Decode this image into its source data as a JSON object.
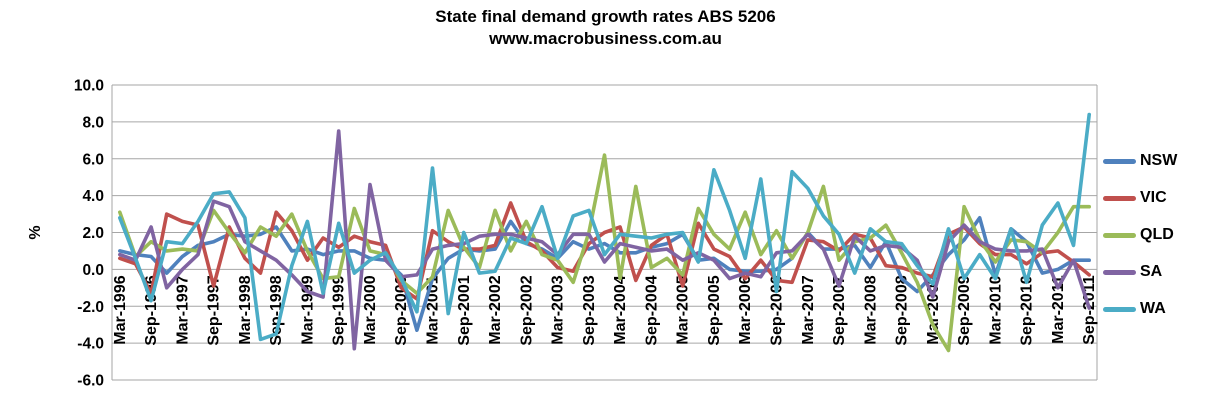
{
  "title": "State final demand  growth rates ABS 5206",
  "subtitle": "www.macrobusiness.com.au",
  "colors": {
    "background": "#ffffff",
    "grid": "#a6a6a6",
    "text": "#000000"
  },
  "chart_data": {
    "type": "line",
    "title": "State final demand  growth rates ABS 5206",
    "subtitle": "www.macrobusiness.com.au",
    "xlabel": "",
    "ylabel": "%",
    "ylim": [
      -6.0,
      10.0
    ],
    "ytick_step": 2.0,
    "ytick_labels": [
      "10.0",
      "8.0",
      "6.0",
      "4.0",
      "2.0",
      "0.0",
      "-2.0",
      "-4.0",
      "-6.0"
    ],
    "grid": true,
    "legend_position": "right",
    "x_label_every": 2,
    "categories": [
      "Mar-1996",
      "Jun-1996",
      "Sep-1996",
      "Dec-1996",
      "Mar-1997",
      "Jun-1997",
      "Sep-1997",
      "Dec-1997",
      "Mar-1998",
      "Jun-1998",
      "Sep-1998",
      "Dec-1998",
      "Mar-1999",
      "Jun-1999",
      "Sep-1999",
      "Dec-1999",
      "Mar-2000",
      "Jun-2000",
      "Sep-2000",
      "Dec-2000",
      "Mar-2001",
      "Jun-2001",
      "Sep-2001",
      "Dec-2001",
      "Mar-2002",
      "Jun-2002",
      "Sep-2002",
      "Dec-2002",
      "Mar-2003",
      "Jun-2003",
      "Sep-2003",
      "Dec-2003",
      "Mar-2004",
      "Jun-2004",
      "Sep-2004",
      "Dec-2004",
      "Mar-2005",
      "Jun-2005",
      "Sep-2005",
      "Dec-2005",
      "Mar-2006",
      "Jun-2006",
      "Sep-2006",
      "Dec-2006",
      "Mar-2007",
      "Jun-2007",
      "Sep-2007",
      "Dec-2007",
      "Mar-2008",
      "Jun-2008",
      "Sep-2008",
      "Dec-2008",
      "Mar-2009",
      "Jun-2009",
      "Sep-2009",
      "Dec-2009",
      "Mar-2010",
      "Jun-2010",
      "Sep-2010",
      "Dec-2010",
      "Mar-2011",
      "Jun-2011",
      "Sep-2011"
    ],
    "series": [
      {
        "name": "NSW",
        "color": "#4F81BD",
        "values": [
          1.0,
          0.8,
          0.7,
          -0.2,
          0.7,
          1.3,
          1.5,
          1.9,
          1.8,
          1.9,
          2.3,
          1.0,
          1.1,
          0.8,
          1.0,
          1.0,
          0.6,
          0.5,
          -0.3,
          -3.3,
          -0.5,
          0.6,
          1.1,
          1.0,
          1.1,
          2.6,
          1.4,
          1.1,
          0.6,
          1.5,
          1.1,
          1.4,
          0.9,
          0.9,
          1.2,
          1.4,
          1.9,
          0.5,
          0.6,
          0.0,
          -0.1,
          -0.1,
          0.0,
          0.6,
          2.0,
          1.1,
          1.1,
          1.3,
          0.1,
          1.5,
          -0.5,
          -1.2,
          -0.3,
          0.8,
          1.6,
          2.8,
          -0.3,
          2.2,
          1.5,
          -0.2,
          0.0,
          0.5,
          0.5
        ]
      },
      {
        "name": "VIC",
        "color": "#C0504D",
        "values": [
          0.6,
          0.3,
          -1.3,
          3.0,
          2.6,
          2.4,
          -0.9,
          2.3,
          0.6,
          -0.2,
          3.1,
          2.1,
          0.5,
          1.7,
          1.2,
          1.8,
          1.5,
          1.3,
          -1.0,
          -1.6,
          2.1,
          1.5,
          1.1,
          1.1,
          1.3,
          3.6,
          1.5,
          1.0,
          0.1,
          -0.1,
          1.4,
          2.0,
          2.3,
          -0.6,
          1.3,
          1.9,
          -0.9,
          2.5,
          1.1,
          0.7,
          -0.5,
          0.5,
          -0.6,
          -0.7,
          1.6,
          1.5,
          1.0,
          1.9,
          1.7,
          0.2,
          0.1,
          -0.2,
          -0.4,
          1.9,
          2.3,
          1.4,
          0.8,
          0.8,
          0.3,
          0.9,
          1.0,
          0.4,
          -0.3
        ]
      },
      {
        "name": "QLD",
        "color": "#9BBB59",
        "values": [
          3.1,
          0.7,
          1.5,
          1.0,
          1.1,
          1.0,
          3.2,
          2.0,
          0.9,
          2.3,
          1.8,
          3.0,
          1.0,
          -0.5,
          -0.4,
          3.3,
          1.0,
          0.8,
          -0.6,
          -1.3,
          -0.4,
          3.2,
          1.2,
          0.1,
          3.2,
          1.0,
          2.6,
          0.8,
          0.5,
          -0.7,
          2.0,
          6.2,
          -0.5,
          4.5,
          0.1,
          0.6,
          -0.3,
          3.3,
          1.9,
          1.1,
          3.1,
          0.8,
          2.1,
          0.6,
          2.0,
          4.5,
          0.5,
          1.5,
          1.7,
          2.4,
          0.9,
          -0.7,
          -3.0,
          -4.4,
          3.4,
          1.6,
          0.4,
          1.6,
          1.5,
          0.9,
          2.0,
          3.4,
          3.4
        ]
      },
      {
        "name": "SA",
        "color": "#8064A2",
        "values": [
          0.8,
          0.5,
          2.3,
          -1.0,
          0.0,
          0.8,
          3.7,
          3.4,
          1.5,
          1.0,
          0.5,
          -0.3,
          -1.2,
          -1.5,
          7.5,
          -4.3,
          4.6,
          0.5,
          -0.4,
          -0.3,
          1.1,
          1.3,
          1.4,
          1.8,
          1.9,
          1.9,
          1.7,
          1.5,
          0.8,
          1.9,
          1.9,
          0.4,
          1.4,
          1.2,
          1.0,
          1.1,
          0.5,
          0.9,
          0.5,
          -0.5,
          -0.2,
          -0.4,
          0.9,
          1.0,
          1.9,
          1.1,
          -0.9,
          1.8,
          1.0,
          1.3,
          1.2,
          0.5,
          -1.5,
          1.5,
          2.4,
          1.5,
          1.1,
          1.0,
          1.0,
          1.1,
          -1.0,
          0.5,
          -2.1
        ]
      },
      {
        "name": "WA",
        "color": "#4BACC6",
        "values": [
          2.8,
          0.6,
          -1.7,
          1.5,
          1.4,
          2.6,
          4.1,
          4.2,
          2.8,
          -3.8,
          -3.5,
          0.2,
          2.6,
          -1.3,
          2.5,
          -0.2,
          0.5,
          0.9,
          -0.5,
          -2.3,
          5.5,
          -2.4,
          2.0,
          -0.2,
          -0.1,
          1.7,
          1.4,
          3.4,
          0.6,
          2.9,
          3.2,
          0.8,
          1.9,
          1.8,
          1.7,
          1.9,
          2.0,
          0.4,
          5.4,
          3.2,
          0.6,
          4.9,
          -1.2,
          5.3,
          4.4,
          2.9,
          1.9,
          -0.2,
          2.2,
          1.5,
          1.4,
          0.2,
          -0.8,
          2.2,
          -0.5,
          0.8,
          -0.5,
          2.2,
          -0.7,
          2.4,
          3.6,
          1.3,
          8.4
        ]
      }
    ]
  }
}
